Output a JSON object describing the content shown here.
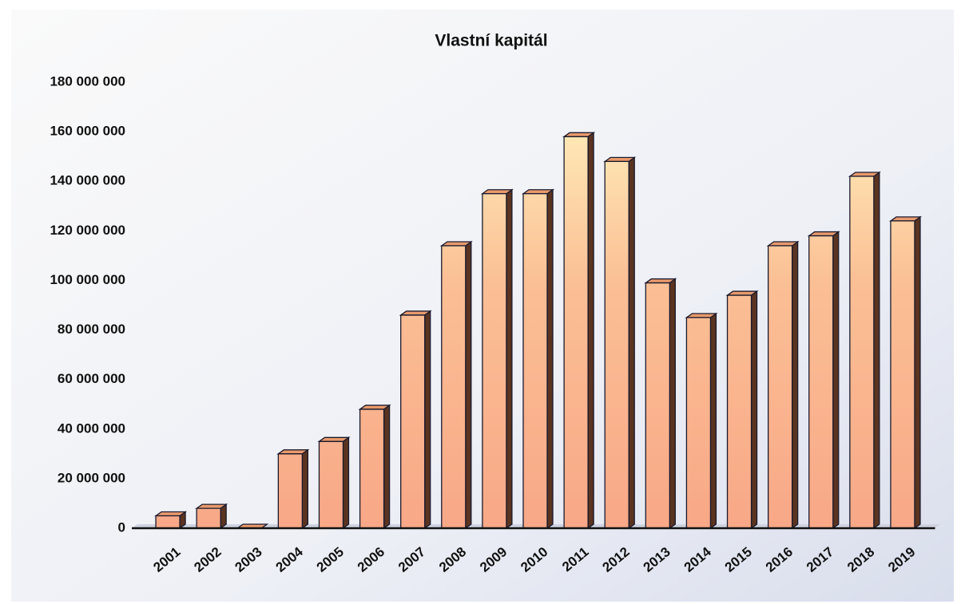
{
  "chart_data": {
    "type": "bar3d",
    "title": "Vlastní kapitál",
    "categories": [
      "2001",
      "2002",
      "2003",
      "2004",
      "2005",
      "2006",
      "2007",
      "2008",
      "2009",
      "2010",
      "2011",
      "2012",
      "2013",
      "2014",
      "2015",
      "2016",
      "2017",
      "2018",
      "2019"
    ],
    "values": [
      5000000,
      8000000,
      0,
      30000000,
      35000000,
      48000000,
      86000000,
      114000000,
      135000000,
      135000000,
      158000000,
      148000000,
      99000000,
      85000000,
      94000000,
      114000000,
      118000000,
      142000000,
      124000000
    ],
    "color": "#f9b08c",
    "ylim": [
      0,
      180000000
    ],
    "yticks": [
      0,
      {
        "value": 20000000,
        "label": "20 000 000"
      },
      {
        "value": 40000000,
        "label": "40 000 000"
      },
      {
        "value": 60000000,
        "label": "60 000 000"
      },
      {
        "value": 80000000,
        "label": "80 000 000"
      },
      {
        "value": 100000000,
        "label": "100 000 000"
      },
      {
        "value": 120000000,
        "label": "120 000 000"
      },
      {
        "value": 140000000,
        "label": "140 000 000"
      },
      {
        "value": 160000000,
        "label": "160 000 000"
      },
      {
        "value": 180000000,
        "label": "180 000 000"
      }
    ],
    "grid": false
  }
}
